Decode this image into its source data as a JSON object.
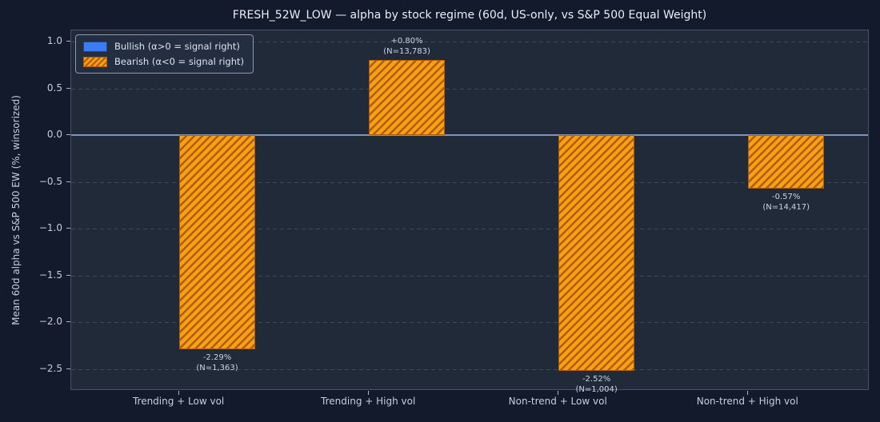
{
  "title": "FRESH_52W_LOW — alpha by stock regime (60d, US-only, vs S&P 500 Equal Weight)",
  "chart_data": {
    "type": "bar",
    "title": "FRESH_52W_LOW — alpha by stock regime (60d, US-only, vs S&P 500 Equal Weight)",
    "xlabel": "",
    "ylabel": "Mean 60d alpha vs S&P 500 EW (%, winsorized)",
    "categories": [
      "Trending + Low vol",
      "Trending + High vol",
      "Non-trend + Low vol",
      "Non-trend + High vol"
    ],
    "series": [
      {
        "name": "Bullish (α>0 = signal right)",
        "style": "solid",
        "color": "#3b7cf2",
        "values": [
          null,
          null,
          null,
          null
        ]
      },
      {
        "name": "Bearish (α<0 = signal right)",
        "style": "hatched",
        "color": "#f7a011",
        "values": [
          -2.29,
          0.8,
          -2.52,
          -0.57
        ]
      }
    ],
    "bar_annotations": [
      {
        "value_label": "-2.29%",
        "n_label": "(N=1,363)"
      },
      {
        "value_label": "+0.80%",
        "n_label": "(N=13,783)"
      },
      {
        "value_label": "-2.52%",
        "n_label": "(N=1,004)"
      },
      {
        "value_label": "-0.57%",
        "n_label": "(N=14,417)"
      }
    ],
    "yticks": [
      1.0,
      0.5,
      0.0,
      -0.5,
      -1.0,
      -1.5,
      -2.0,
      -2.5
    ],
    "ytick_labels": [
      "1.0",
      "0.5",
      "0.0",
      "−0.5",
      "−1.0",
      "−1.5",
      "−2.0",
      "−2.5"
    ],
    "ylim": [
      -2.73,
      1.12
    ],
    "xlim": [
      -0.57,
      3.64
    ],
    "bar_width_units": 0.4,
    "grid": "horizontal-dashed",
    "zero_line": true,
    "legend_position": "upper left",
    "colors": {
      "figure_bg": "#121a2b",
      "plot_bg": "#212a38",
      "bar_fill": "#f7a011",
      "bar_hatch": "#b05c0a",
      "bullish_blue": "#3b7cf2",
      "zero_line": "#8294b5",
      "spine": "#45526a",
      "text": "#c6cedb",
      "title_text": "#e9edf4"
    }
  }
}
